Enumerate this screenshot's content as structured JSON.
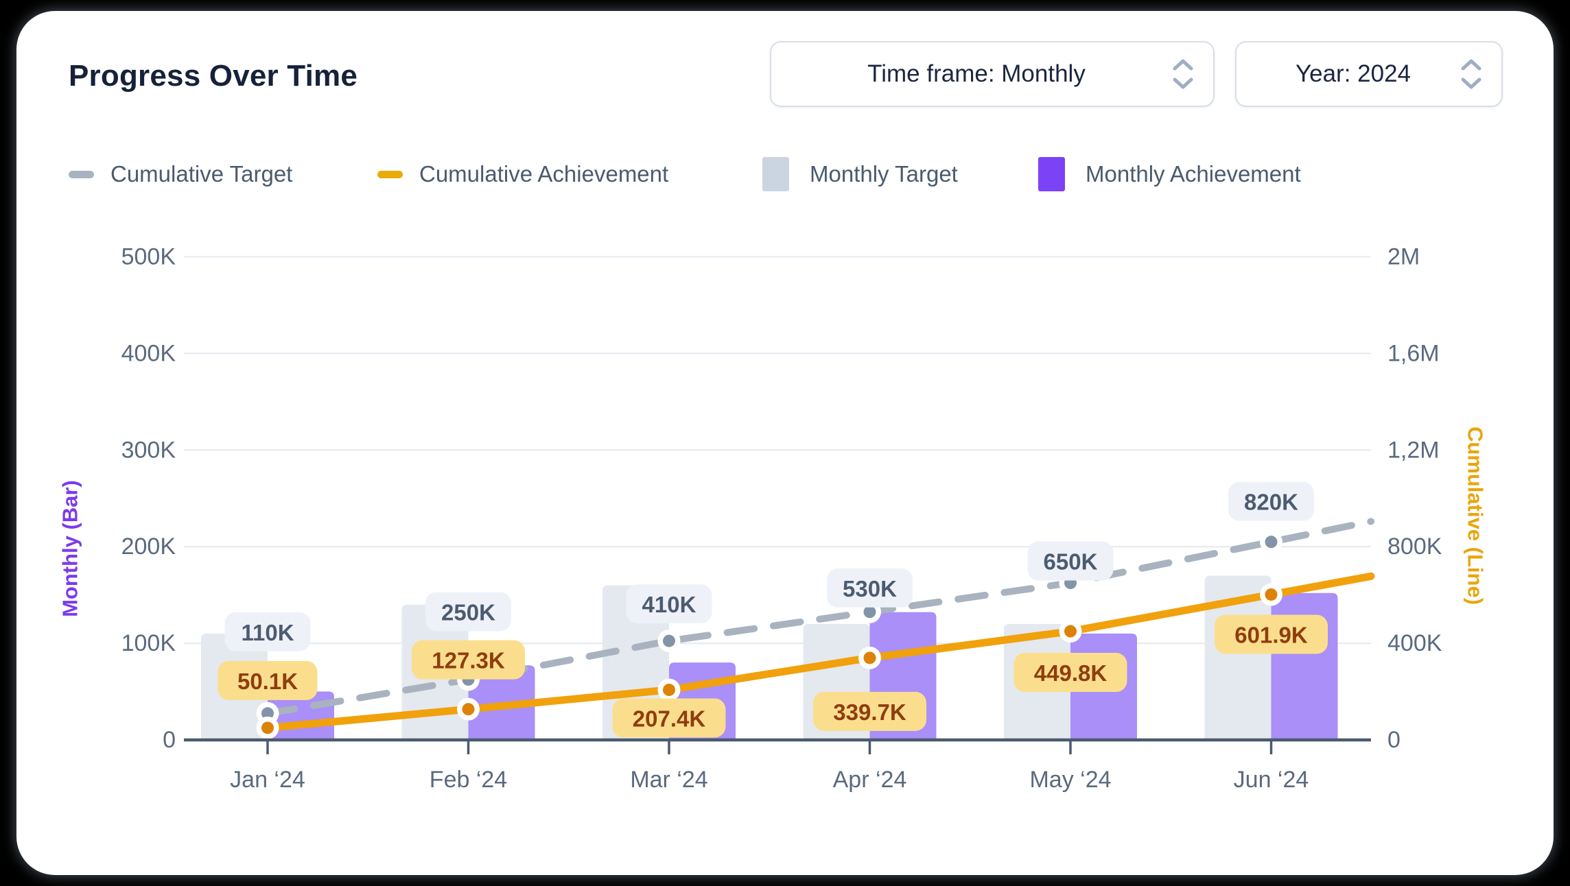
{
  "header": {
    "title": "Progress Over Time"
  },
  "controls": {
    "timeframe": {
      "label": "Time frame: Monthly"
    },
    "year": {
      "label": "Year: 2024"
    }
  },
  "legend": [
    {
      "label": "Cumulative Target",
      "swatch": "dash",
      "color": "#a9b3c0"
    },
    {
      "label": "Cumulative Achievement",
      "swatch": "dash",
      "color": "#e8ab0b"
    },
    {
      "label": "Monthly Target",
      "swatch": "bar",
      "color": "#cbd5e1"
    },
    {
      "label": "Monthly Achievement",
      "swatch": "bar",
      "color": "#7c42f5"
    }
  ],
  "colors": {
    "title_text": "#16213a",
    "axis_text": "#5a6a7e",
    "axis_line": "#4a5a6e",
    "gridline": "#e9edf3",
    "bar_target": "#e4e8ef",
    "bar_achievement": "#a98ff7",
    "line_target": "#a9b3c0",
    "line_achievement": "#f0a10c",
    "dot_target": "#8494a8",
    "dot_achievement": "#dc8207",
    "pill_target_bg": "#eef2f8",
    "pill_target_text": "#4c5b70",
    "pill_achievement_bg": "#fbde8d",
    "pill_achievement_text": "#8f3d0f",
    "left_axis_title": "#7c3aed",
    "right_axis_title": "#e9a50c"
  },
  "chart_data": {
    "type": "combo-bar-line",
    "categories": [
      "Jan ‘24",
      "Feb ‘24",
      "Mar ‘24",
      "Apr ‘24",
      "May ‘24",
      "Jun ‘24"
    ],
    "series": [
      {
        "name": "Monthly Target",
        "type": "bar",
        "axis": "left",
        "values": [
          110000,
          140000,
          160000,
          120000,
          120000,
          170000
        ]
      },
      {
        "name": "Monthly Achievement",
        "type": "bar",
        "axis": "left",
        "values": [
          50100,
          77200,
          80100,
          132300,
          110100,
          152100
        ]
      },
      {
        "name": "Cumulative Target",
        "type": "line",
        "dashed": true,
        "axis": "right",
        "values": [
          110000,
          250000,
          410000,
          530000,
          650000,
          820000
        ],
        "point_labels": [
          "110K",
          "250K",
          "410K",
          "530K",
          "650K",
          "820K"
        ]
      },
      {
        "name": "Cumulative Achievement",
        "type": "line",
        "dashed": false,
        "axis": "right",
        "values": [
          50100,
          127300,
          207400,
          339700,
          449800,
          601900
        ],
        "point_labels": [
          "50.1K",
          "127.3K",
          "207.4K",
          "339.7K",
          "449.8K",
          "601.9K"
        ]
      }
    ],
    "left_axis": {
      "title": "Monthly (Bar)",
      "range": [
        0,
        500000
      ],
      "ticks": [
        "0",
        "100K",
        "200K",
        "300K",
        "400K",
        "500K"
      ]
    },
    "right_axis": {
      "title": "Cumulative (Line)",
      "range": [
        0,
        2000000
      ],
      "ticks": [
        "0",
        "400K",
        "800K",
        "1,2M",
        "1,6M",
        "2M"
      ]
    },
    "grid": true,
    "legend_position": "top"
  }
}
